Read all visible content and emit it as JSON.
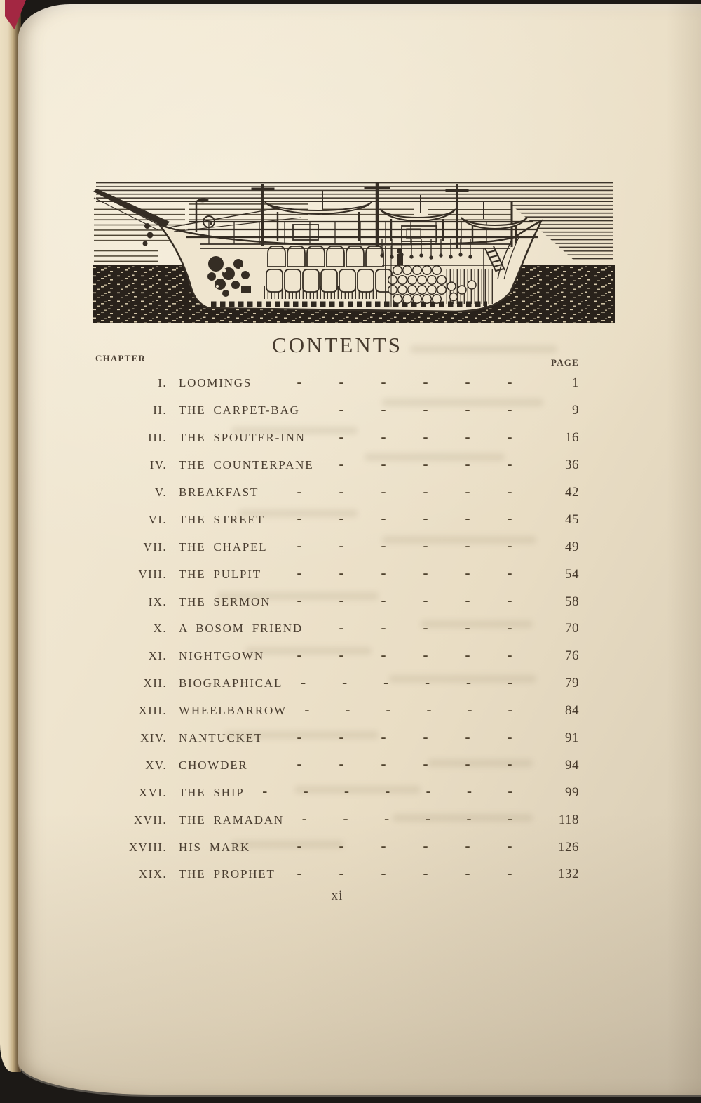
{
  "book_page": {
    "heading": "CONTENTS",
    "chapter_column_label": "CHAPTER",
    "page_column_label": "PAGE",
    "folio": "xi",
    "leader_glyph": "-",
    "illustration_alt": "Woodcut cross-section of a whaling ship afloat: hull cut away showing casks stacked in the hold, whaleboats hung above deck, masts, bowsprit and dark stippled sea",
    "toc": [
      {
        "numeral": "I.",
        "title": "LOOMINGS",
        "dashes": 6,
        "page": "1"
      },
      {
        "numeral": "II.",
        "title": "THE CARPET-BAG",
        "dashes": 5,
        "page": "9"
      },
      {
        "numeral": "III.",
        "title": "THE SPOUTER-INN",
        "dashes": 5,
        "page": "16"
      },
      {
        "numeral": "IV.",
        "title": "THE COUNTERPANE",
        "dashes": 5,
        "page": "36"
      },
      {
        "numeral": "V.",
        "title": "BREAKFAST",
        "dashes": 6,
        "page": "42"
      },
      {
        "numeral": "VI.",
        "title": "THE STREET",
        "dashes": 6,
        "page": "45"
      },
      {
        "numeral": "VII.",
        "title": "THE CHAPEL",
        "dashes": 6,
        "page": "49"
      },
      {
        "numeral": "VIII.",
        "title": "THE PULPIT",
        "dashes": 6,
        "page": "54"
      },
      {
        "numeral": "IX.",
        "title": "THE SERMON",
        "dashes": 6,
        "page": "58"
      },
      {
        "numeral": "X.",
        "title": "A BOSOM FRIEND",
        "dashes": 5,
        "page": "70"
      },
      {
        "numeral": "XI.",
        "title": "NIGHTGOWN",
        "dashes": 6,
        "page": "76"
      },
      {
        "numeral": "XII.",
        "title": "BIOGRAPHICAL",
        "dashes": 6,
        "page": "79"
      },
      {
        "numeral": "XIII.",
        "title": "WHEELBARROW",
        "dashes": 6,
        "page": "84"
      },
      {
        "numeral": "XIV.",
        "title": "NANTUCKET",
        "dashes": 6,
        "page": "91"
      },
      {
        "numeral": "XV.",
        "title": "CHOWDER",
        "dashes": 6,
        "page": "94"
      },
      {
        "numeral": "XVI.",
        "title": "THE SHIP",
        "dashes": 7,
        "page": "99"
      },
      {
        "numeral": "XVII.",
        "title": "THE RAMADAN",
        "dashes": 6,
        "page": "118"
      },
      {
        "numeral": "XVIII.",
        "title": "HIS MARK",
        "dashes": 6,
        "page": "126"
      },
      {
        "numeral": "XIX.",
        "title": "THE PROPHET",
        "dashes": 6,
        "page": "132"
      }
    ],
    "colors": {
      "paper": "#ede2ca",
      "text_ink": "#493d30",
      "illustration_ink": "#352d24",
      "sea_black": "#29221b",
      "cover_red": "#a32742",
      "under_page_edge": "#e6d8ba",
      "background": "#1c1916"
    }
  }
}
